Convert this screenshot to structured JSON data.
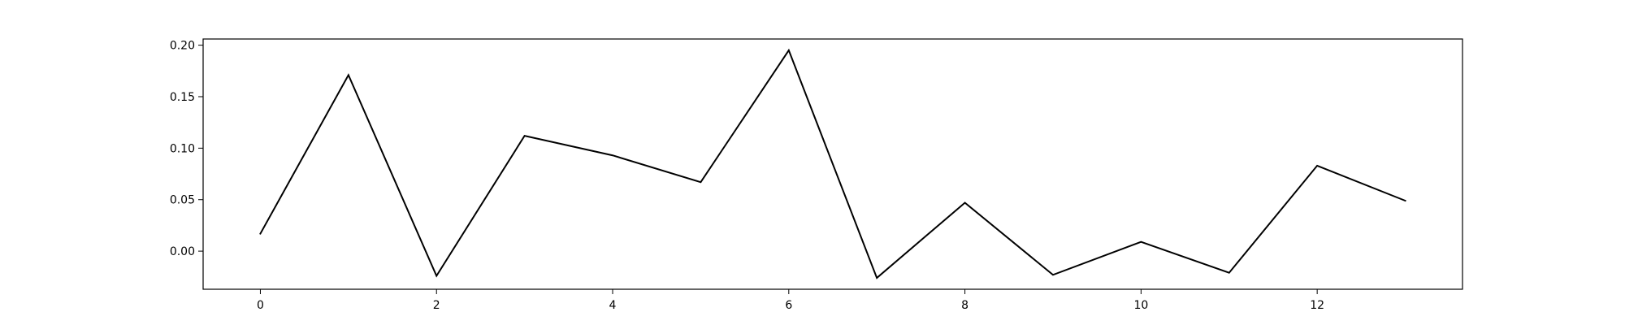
{
  "chart_data": {
    "type": "line",
    "title": "",
    "xlabel": "",
    "ylabel": "",
    "xlim": [
      -0.65,
      13.65
    ],
    "ylim": [
      -0.037,
      0.206
    ],
    "x_ticks": [
      0,
      2,
      4,
      6,
      8,
      10,
      12
    ],
    "x_tick_labels": [
      "0",
      "2",
      "4",
      "6",
      "8",
      "10",
      "12"
    ],
    "y_ticks": [
      0.0,
      0.05,
      0.1,
      0.15,
      0.2
    ],
    "y_tick_labels": [
      "0.00",
      "0.05",
      "0.10",
      "0.15",
      "0.20"
    ],
    "grid": false,
    "legend": "none",
    "series": [
      {
        "color": "#000000",
        "x": [
          0,
          1,
          2,
          3,
          4,
          5,
          6,
          7,
          8,
          9,
          10,
          11,
          12,
          13
        ],
        "y": [
          0.017,
          0.171,
          -0.024,
          0.112,
          0.093,
          0.067,
          0.195,
          -0.026,
          0.047,
          -0.023,
          0.009,
          -0.021,
          0.083,
          0.049
        ]
      }
    ]
  }
}
